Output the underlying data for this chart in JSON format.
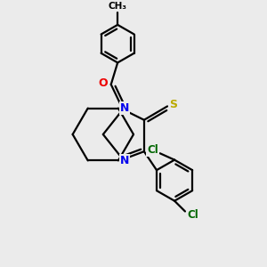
{
  "background_color": "#ebebeb",
  "atom_colors": {
    "N": "#0000ee",
    "O": "#ee0000",
    "S": "#bbaa00",
    "Cl": "#006600",
    "C": "#000000"
  },
  "bond_color": "#000000",
  "bond_width": 1.6,
  "dbo": 0.012,
  "figsize": [
    3.0,
    3.0
  ],
  "dpi": 100
}
